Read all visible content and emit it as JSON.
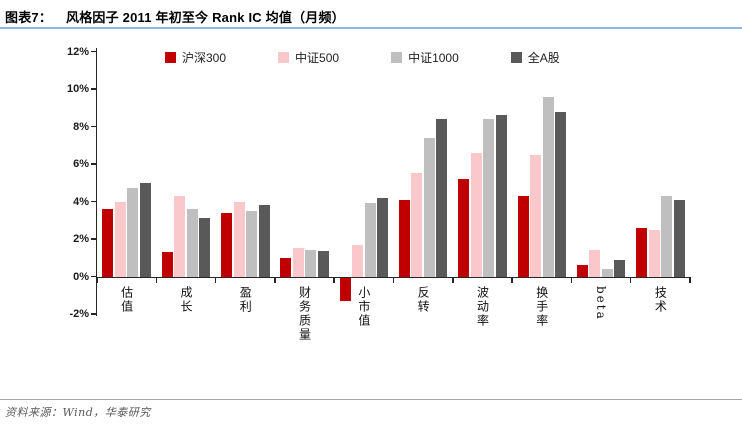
{
  "header": {
    "tag": "图表7：",
    "title": "风格因子 2011 年初至今 Rank IC 均值（月频）"
  },
  "chart_data": {
    "type": "bar",
    "title": "风格因子 2011 年初至今 Rank IC 均值（月频）",
    "categories": [
      "估值",
      "成长",
      "盈利",
      "财务质量",
      "小市值",
      "反转",
      "波动率",
      "换手率",
      "beta",
      "技术"
    ],
    "series": [
      {
        "name": "沪深300",
        "color": "#C00000",
        "values": [
          3.6,
          1.3,
          3.4,
          1.0,
          -1.3,
          4.1,
          5.2,
          4.3,
          0.6,
          2.6
        ]
      },
      {
        "name": "中证500",
        "color": "#FAC7CA",
        "values": [
          4.0,
          4.3,
          4.0,
          1.5,
          1.7,
          5.5,
          6.6,
          6.5,
          1.4,
          2.5
        ]
      },
      {
        "name": "中证1000",
        "color": "#BFBFBF",
        "values": [
          4.7,
          3.6,
          3.5,
          1.4,
          3.9,
          7.4,
          8.4,
          9.6,
          0.4,
          4.3
        ]
      },
      {
        "name": "全A股",
        "color": "#595959",
        "values": [
          5.0,
          3.1,
          3.8,
          1.35,
          4.2,
          8.4,
          8.6,
          8.8,
          0.9,
          4.1
        ]
      }
    ],
    "xlabel": "",
    "ylabel": "",
    "ylim": [
      -2,
      12
    ],
    "ytick_step": 2,
    "ytick_labels": [
      "12%",
      "10%",
      "8%",
      "6%",
      "4%",
      "2%",
      "0%",
      "-2%"
    ],
    "grid": false,
    "legend_position": "top"
  },
  "footer": {
    "source": "资料来源：Wind，华泰研究"
  },
  "colors": {
    "title_rule": "#8EB4E3",
    "footer_rule": "#A6A6A6",
    "axis": "#262626",
    "footer_text": "#595959"
  }
}
